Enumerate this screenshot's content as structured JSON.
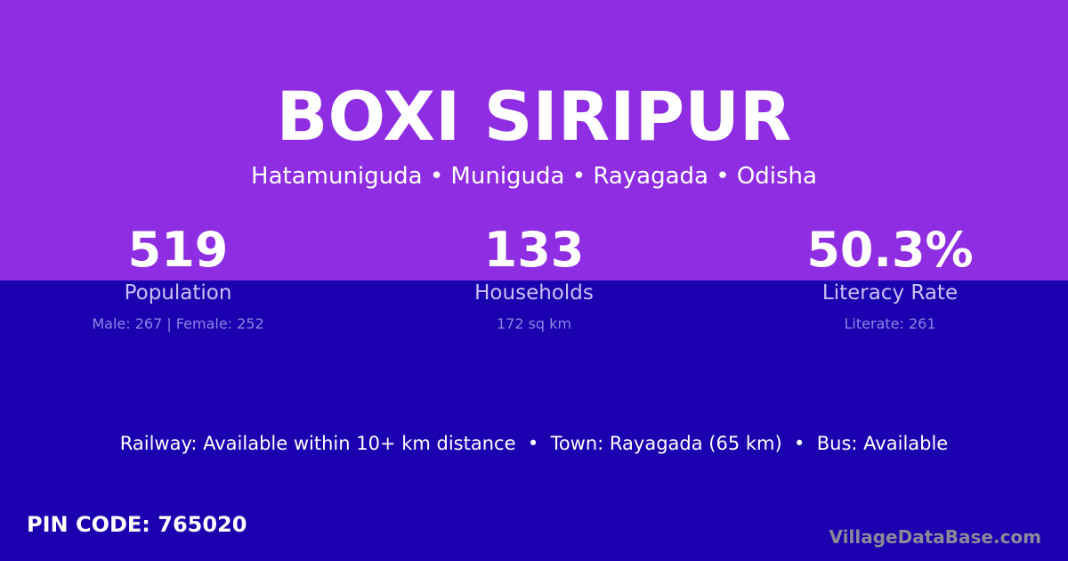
{
  "colors": {
    "top_background": "#8e2de2",
    "bottom_background": "#1a00ae"
  },
  "title": "BOXI SIRIPUR",
  "location": "Hatamuniguda • Muniguda • Rayagada • Odisha",
  "stats": [
    {
      "value": "519",
      "label": "Population",
      "detail": "Male: 267 | Female: 252"
    },
    {
      "value": "133",
      "label": "Households",
      "detail": "172 sq km"
    },
    {
      "value": "50.3%",
      "label": "Literacy Rate",
      "detail": "Literate: 261"
    }
  ],
  "amenities": "Railway: Available within 10+ km distance  •  Town: Rayagada (65 km)  •  Bus: Available",
  "pin_code": "PIN CODE: 765020",
  "watermark": "VillageDataBase.com"
}
